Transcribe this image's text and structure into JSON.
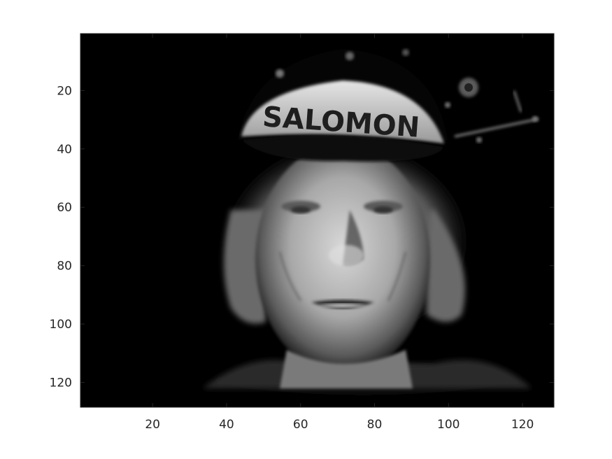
{
  "figure": {
    "background": "#ffffff",
    "axes_color": "#262626",
    "image_description_colormap": "gray"
  },
  "image_axes": {
    "x_tick_labels": [
      "20",
      "40",
      "60",
      "80",
      "100",
      "120"
    ],
    "y_tick_labels": [
      "20",
      "40",
      "60",
      "80",
      "100",
      "120"
    ],
    "x_ticks": [
      20,
      40,
      60,
      80,
      100,
      120
    ],
    "y_ticks": [
      20,
      40,
      60,
      80,
      100,
      120
    ],
    "xlim": [
      0.5,
      128.5
    ],
    "ylim": [
      0.5,
      128.5
    ],
    "y_direction": "reverse"
  },
  "image_content": {
    "cap_text": "SALOMON"
  }
}
